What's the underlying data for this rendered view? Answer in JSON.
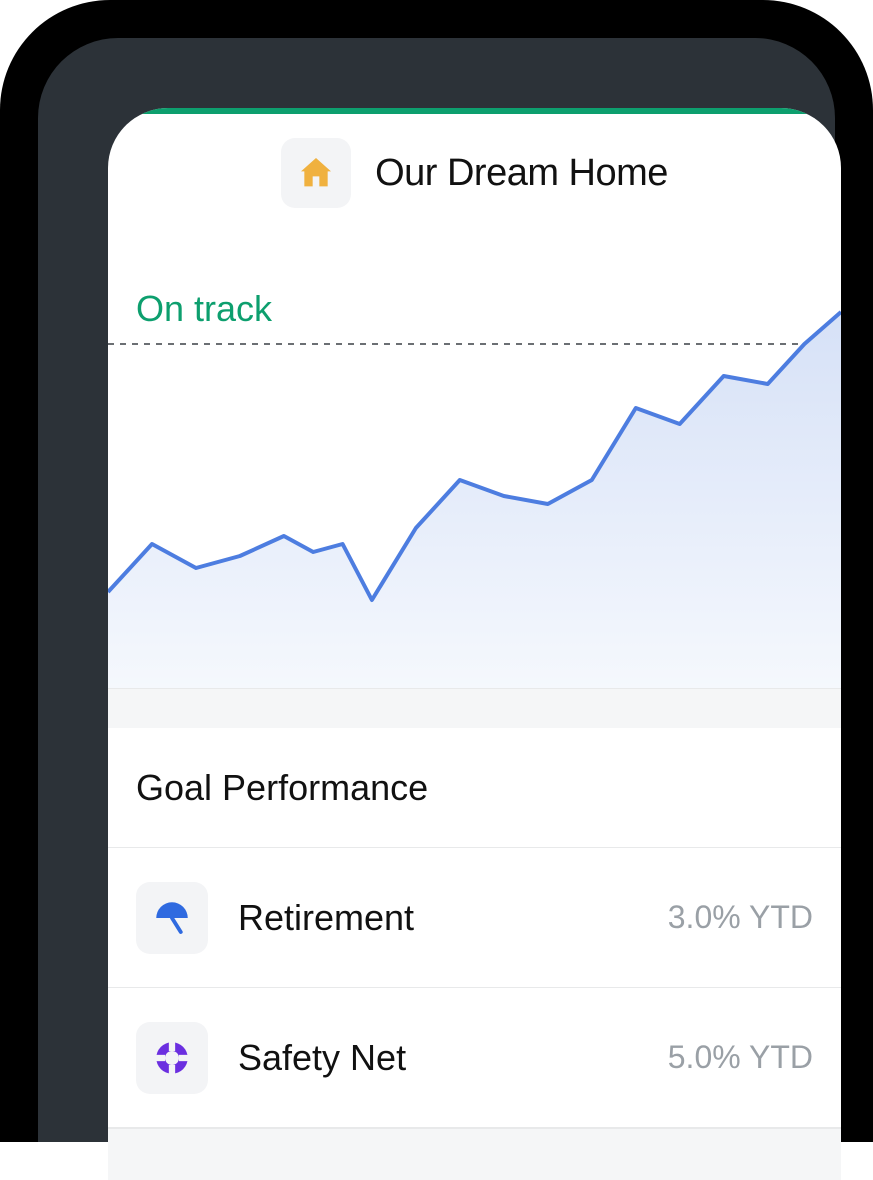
{
  "header": {
    "title": "Our Dream Home",
    "icon": "home-icon",
    "icon_color": "#f0b13f",
    "icon_tile_bg": "#f3f4f6"
  },
  "chart": {
    "type": "area",
    "status_label": "On track",
    "status_color": "#0d9f6e",
    "line_color": "#4d7de0",
    "line_width": 4,
    "fill_top_color": "#d6e1f7",
    "fill_bottom_color": "#f5f8fd",
    "target_line_color": "#6b6f73",
    "target_line_dash": "6 6",
    "background_color": "#ffffff",
    "x_range": [
      0,
      100
    ],
    "y_range": [
      0,
      100
    ],
    "target_y": 86,
    "points": [
      {
        "x": 0,
        "y": 24
      },
      {
        "x": 6,
        "y": 36
      },
      {
        "x": 12,
        "y": 30
      },
      {
        "x": 18,
        "y": 33
      },
      {
        "x": 24,
        "y": 38
      },
      {
        "x": 28,
        "y": 34
      },
      {
        "x": 32,
        "y": 36
      },
      {
        "x": 36,
        "y": 22
      },
      {
        "x": 42,
        "y": 40
      },
      {
        "x": 48,
        "y": 52
      },
      {
        "x": 54,
        "y": 48
      },
      {
        "x": 60,
        "y": 46
      },
      {
        "x": 66,
        "y": 52
      },
      {
        "x": 72,
        "y": 70
      },
      {
        "x": 78,
        "y": 66
      },
      {
        "x": 84,
        "y": 78
      },
      {
        "x": 90,
        "y": 76
      },
      {
        "x": 95,
        "y": 86
      },
      {
        "x": 100,
        "y": 94
      }
    ]
  },
  "section": {
    "title": "Goal Performance"
  },
  "goals": [
    {
      "name": "Retirement",
      "value": "3.0% YTD",
      "icon": "umbrella-icon",
      "icon_color": "#2f6ae0",
      "tile_bg": "#f3f4f6"
    },
    {
      "name": "Safety Net",
      "value": "5.0% YTD",
      "icon": "lifebuoy-icon",
      "icon_color": "#6b2fe0",
      "tile_bg": "#f3f4f6"
    }
  ],
  "palette": {
    "frame_outer": "#000000",
    "frame_inner": "#2c3238",
    "screen_bg": "#ffffff",
    "top_strip": "#0d9f6e",
    "divider": "#e8e9ea",
    "section_gap_bg": "#f5f6f7",
    "text_primary": "#111111",
    "text_muted": "#9aa0a6"
  }
}
